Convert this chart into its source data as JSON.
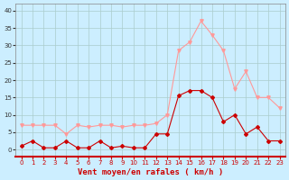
{
  "hours": [
    0,
    1,
    2,
    3,
    4,
    5,
    6,
    7,
    8,
    9,
    10,
    11,
    12,
    13,
    14,
    15,
    16,
    17,
    18,
    19,
    20,
    21,
    22,
    23
  ],
  "wind_avg": [
    1,
    2.5,
    0.5,
    0.5,
    2.5,
    0.5,
    0.5,
    2.5,
    0.5,
    1,
    0.5,
    0.5,
    4.5,
    4.5,
    15.5,
    17,
    17,
    15,
    8,
    10,
    4.5,
    6.5,
    2.5,
    2.5
  ],
  "wind_gust": [
    7,
    7,
    7,
    7,
    4.5,
    7,
    6.5,
    7,
    7,
    6.5,
    7,
    7,
    7.5,
    10,
    28.5,
    31,
    37,
    33,
    28.5,
    17.5,
    22.5,
    15,
    15,
    12
  ],
  "avg_color": "#cc0000",
  "gust_color": "#ff9999",
  "bg_color": "#cceeff",
  "grid_color": "#aacccc",
  "xlabel": "Vent moyen/en rafales ( km/h )",
  "ylim": [
    -2,
    42
  ],
  "xlim": [
    -0.5,
    23.5
  ],
  "yticks": [
    0,
    5,
    10,
    15,
    20,
    25,
    30,
    35,
    40
  ],
  "xticks": [
    0,
    1,
    2,
    3,
    4,
    5,
    6,
    7,
    8,
    9,
    10,
    11,
    12,
    13,
    14,
    15,
    16,
    17,
    18,
    19,
    20,
    21,
    22,
    23
  ]
}
